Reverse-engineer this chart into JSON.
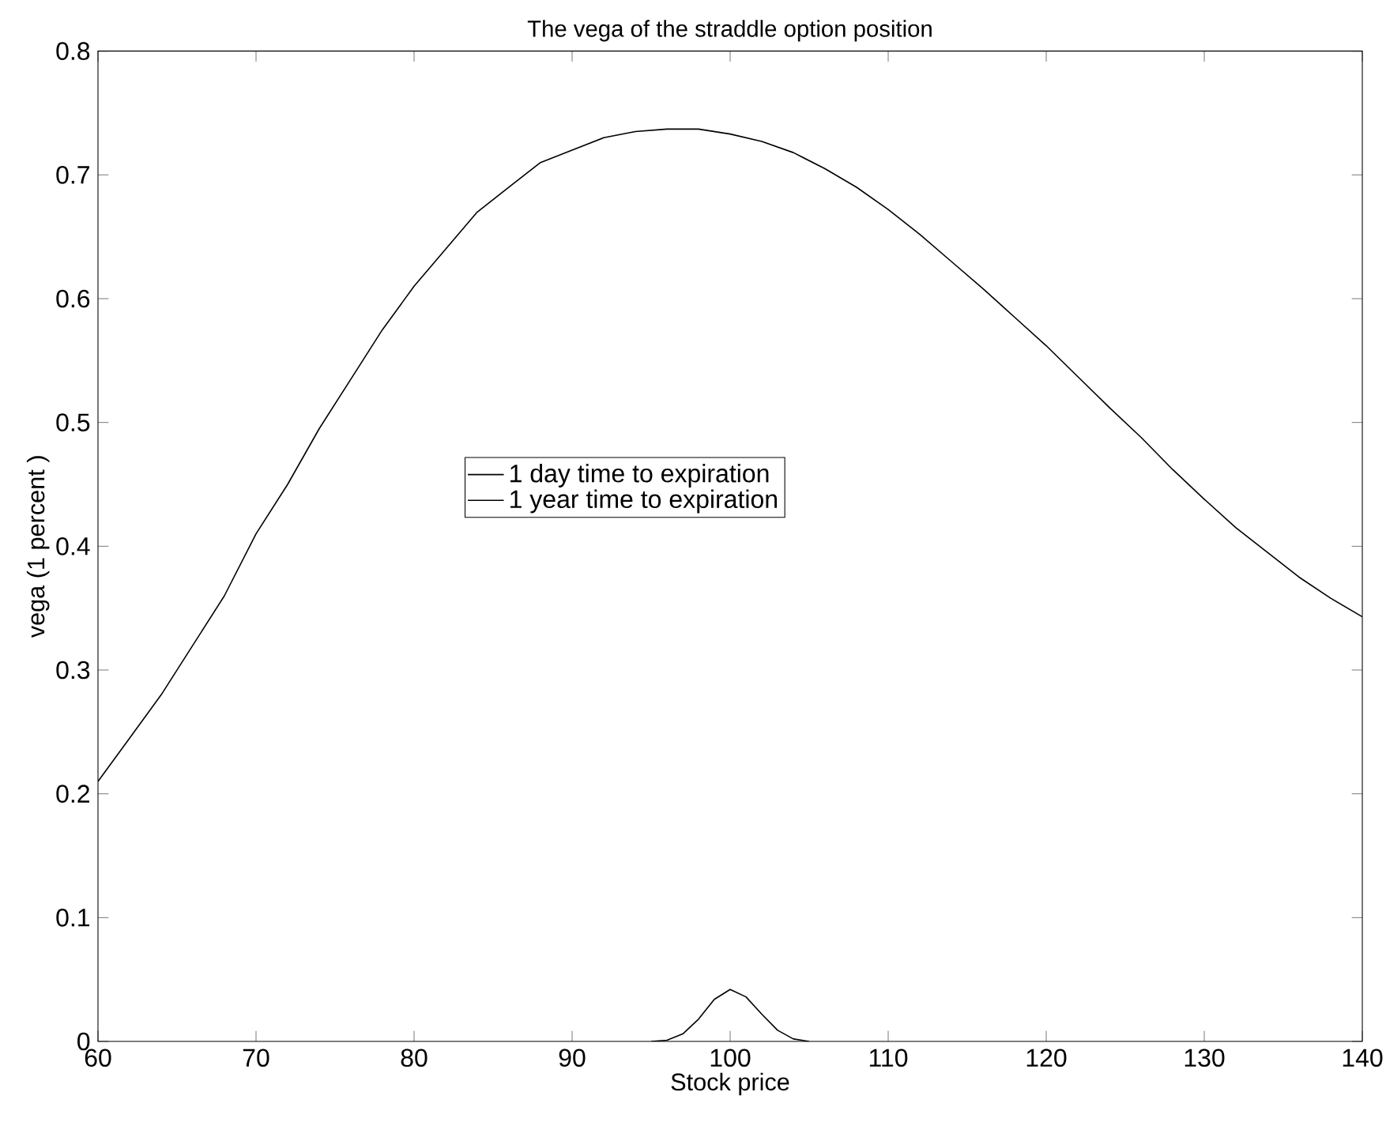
{
  "chart_data": {
    "type": "line",
    "title": "The vega of the straddle option position",
    "xlabel": "Stock price",
    "ylabel": "vega (1 percent )",
    "xlim": [
      60,
      140
    ],
    "xticks": [
      60,
      70,
      80,
      90,
      100,
      110,
      120,
      130,
      140
    ],
    "ylim": [
      0,
      0.8
    ],
    "yticks": [
      0,
      0.1,
      0.2,
      0.3,
      0.4,
      0.5,
      0.6,
      0.7,
      0.8
    ],
    "grid": false,
    "legend": "center",
    "marker": "none",
    "line_style": "solid",
    "series": [
      {
        "name": "1 day time to expiration",
        "color": "#000000",
        "x": [
          95,
          96,
          97,
          98,
          99,
          100,
          101,
          102,
          103,
          104,
          105
        ],
        "values": [
          0,
          0.001,
          0.006,
          0.018,
          0.034,
          0.042,
          0.036,
          0.022,
          0.009,
          0.002,
          0
        ]
      },
      {
        "name": "1 year time to expiration",
        "color": "#000000",
        "x": [
          60,
          62,
          64,
          66,
          68,
          70,
          72,
          74,
          76,
          78,
          80,
          82,
          84,
          86,
          88,
          90,
          92,
          94,
          96,
          98,
          100,
          102,
          104,
          106,
          108,
          110,
          112,
          114,
          116,
          118,
          120,
          122,
          124,
          126,
          128,
          130,
          132,
          134,
          136,
          138,
          140
        ],
        "values": [
          0.21,
          0.245,
          0.28,
          0.32,
          0.36,
          0.41,
          0.45,
          0.495,
          0.535,
          0.575,
          0.61,
          0.64,
          0.67,
          0.69,
          0.71,
          0.72,
          0.73,
          0.735,
          0.737,
          0.737,
          0.733,
          0.727,
          0.718,
          0.705,
          0.69,
          0.672,
          0.652,
          0.63,
          0.608,
          0.585,
          0.562,
          0.537,
          0.512,
          0.488,
          0.462,
          0.438,
          0.415,
          0.395,
          0.375,
          0.358,
          0.343
        ]
      }
    ]
  }
}
